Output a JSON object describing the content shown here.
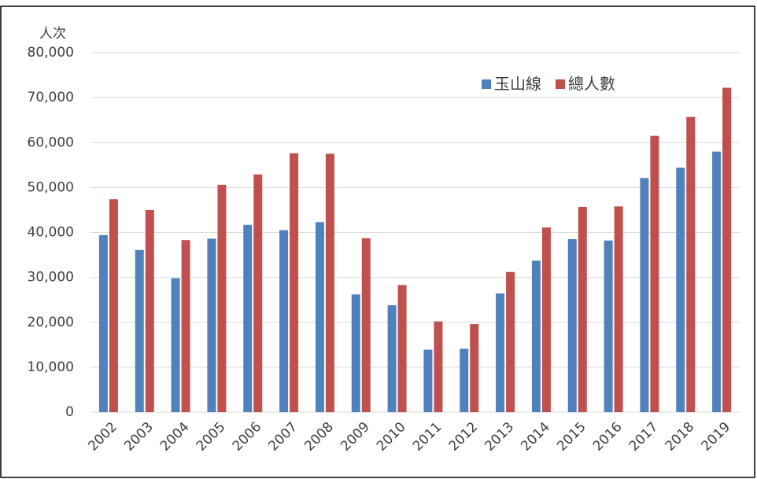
{
  "chart_data": {
    "type": "bar",
    "y_label": "人次",
    "categories": [
      "2002",
      "2003",
      "2004",
      "2005",
      "2006",
      "2007",
      "2008",
      "2009",
      "2010",
      "2011",
      "2012",
      "2013",
      "2014",
      "2015",
      "2016",
      "2017",
      "2018",
      "2019"
    ],
    "series": [
      {
        "name": "玉山線",
        "color": "#4f81bd",
        "values": [
          39400,
          36100,
          29800,
          38600,
          41700,
          40500,
          42300,
          26200,
          23800,
          13900,
          14100,
          26400,
          33700,
          38500,
          38200,
          52100,
          54400,
          58000
        ]
      },
      {
        "name": "總人數",
        "color": "#c0504d",
        "values": [
          47400,
          45000,
          38300,
          50600,
          52900,
          57600,
          57500,
          38700,
          28300,
          20200,
          19600,
          31200,
          41100,
          45700,
          45800,
          61500,
          65700,
          72200
        ]
      }
    ],
    "ylim": [
      0,
      80000
    ],
    "yticks": [
      0,
      {
        "value": 10000,
        "label": "10,000"
      },
      {
        "value": 20000,
        "label": "20,000"
      },
      {
        "value": 30000,
        "label": "30,000"
      },
      {
        "value": 40000,
        "label": "40,000"
      },
      {
        "value": 50000,
        "label": "50,000"
      },
      {
        "value": 60000,
        "label": "60,000"
      },
      {
        "value": 70000,
        "label": "70,000"
      },
      {
        "value": 80000,
        "label": "80,000"
      }
    ],
    "grid": true,
    "legend": "top-right"
  }
}
